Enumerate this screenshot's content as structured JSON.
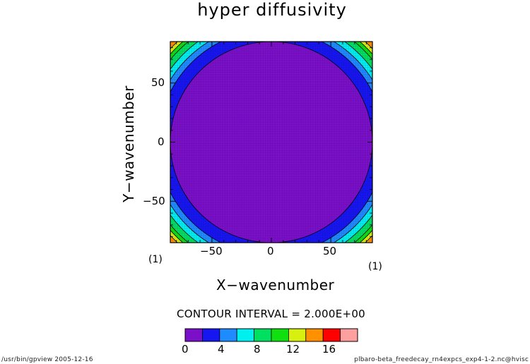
{
  "chart_data": {
    "type": "heatmap",
    "title": "hyper diffusivity",
    "xlabel": "X−wavenumber",
    "ylabel": "Y−wavenumber",
    "xlim": [
      -85,
      85
    ],
    "ylim": [
      -85,
      85
    ],
    "x_ticks": [
      -50,
      0,
      50
    ],
    "y_ticks": [
      50,
      0,
      -50
    ],
    "x_tick_labels": [
      "−50",
      "0",
      "50"
    ],
    "y_tick_labels": [
      "50",
      "0",
      "−50"
    ],
    "x_unit": "(1)",
    "y_unit": "(1)",
    "contour_interval": "CONTOUR INTERVAL = 2.000E+00",
    "field_value_interior": 1,
    "corner_contour_radii": [
      85,
      95,
      100,
      105,
      110,
      113,
      116
    ],
    "colorbar": {
      "levels": [
        0,
        2,
        4,
        6,
        8,
        10,
        12,
        14,
        16,
        18,
        20
      ],
      "tick_values": [
        0,
        4,
        8,
        12,
        16
      ],
      "tick_labels": [
        "0",
        "4",
        "8",
        "12",
        "16"
      ],
      "colors": [
        "#7a10c8",
        "#1616f0",
        "#1e8cff",
        "#00f0f0",
        "#00e060",
        "#10e010",
        "#d8f010",
        "#ff9000",
        "#ff0000",
        "#ffa0a0"
      ]
    }
  },
  "footer": {
    "left": "/usr/bin/gpview   2005-12-16",
    "right": "plbaro-beta_freedecay_rn4expcs_exp4-1-2.nc@hvisc"
  }
}
